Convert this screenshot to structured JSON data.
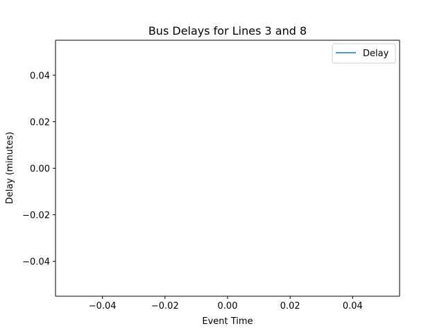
{
  "chart_data": {
    "type": "line",
    "title": "Bus Delays for Lines 3 and 8",
    "xlabel": "Event Time",
    "ylabel": "Delay (minutes)",
    "xlim": [
      -0.055,
      0.055
    ],
    "ylim": [
      -0.055,
      0.055
    ],
    "xticks": [
      -0.04,
      -0.02,
      0.0,
      0.02,
      0.04
    ],
    "xtick_labels": [
      "−0.04",
      "−0.02",
      "0.00",
      "0.02",
      "0.04"
    ],
    "yticks": [
      0.04,
      0.02,
      0.0,
      -0.02,
      -0.04
    ],
    "ytick_labels": [
      "0.04",
      "0.02",
      "0.00",
      "−0.02",
      "−0.04"
    ],
    "grid": false,
    "legend_position": "top-right",
    "series": [
      {
        "name": "Delay",
        "color": "#1f77b4",
        "x": [],
        "y": []
      }
    ]
  }
}
